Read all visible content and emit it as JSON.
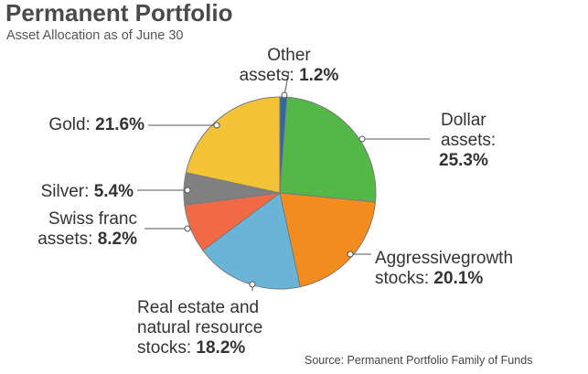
{
  "chart_data": {
    "type": "pie",
    "title": "Permanent Portfolio",
    "subtitle": "Asset Allocation as of June 30",
    "source": "Source: Permanent Portfolio Family of Funds",
    "slices": [
      {
        "name": "Other assets",
        "label_lines": [
          "Other",
          "assets: "
        ],
        "value_text": "1.2%",
        "value": 1.2,
        "color": "#2c6aa0"
      },
      {
        "name": "Dollar assets",
        "label_lines": [
          "Dollar",
          "assets:"
        ],
        "value_text": "25.3%",
        "value": 25.3,
        "color": "#53b848"
      },
      {
        "name": "Aggressivegrowth stocks",
        "label_lines": [
          "Aggressivegrowth",
          "stocks: "
        ],
        "value_text": "20.1%",
        "value": 20.1,
        "color": "#f28c1e"
      },
      {
        "name": "Real estate and natural resource stocks",
        "label_lines": [
          "Real estate and",
          "natural resource",
          "stocks: "
        ],
        "value_text": "18.2%",
        "value": 18.2,
        "color": "#6ab4d8"
      },
      {
        "name": "Swiss franc assets",
        "label_lines": [
          "Swiss franc",
          "assets: "
        ],
        "value_text": "8.2%",
        "value": 8.2,
        "color": "#f26a45"
      },
      {
        "name": "Silver",
        "label_lines": [
          "Silver: "
        ],
        "value_text": "5.4%",
        "value": 5.4,
        "color": "#808080"
      },
      {
        "name": "Gold",
        "label_lines": [
          "Gold: "
        ],
        "value_text": "21.6%",
        "value": 21.6,
        "color": "#f4c236"
      }
    ]
  }
}
